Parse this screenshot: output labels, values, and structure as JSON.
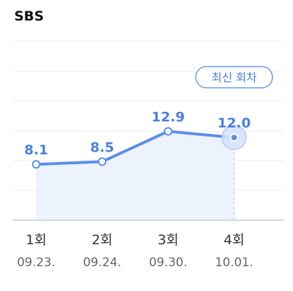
{
  "header": {
    "title": "SBS"
  },
  "chart_data": {
    "type": "line",
    "categories": [
      "1회",
      "2회",
      "3회",
      "4회"
    ],
    "dates": [
      "09.23.",
      "09.24.",
      "09.30.",
      "10.01."
    ],
    "series": [
      {
        "values": [
          8.1,
          8.5,
          12.9,
          12.0
        ]
      }
    ],
    "ylim": [
      0,
      26
    ],
    "grid": true,
    "area_fill": true,
    "highlight": {
      "index": 3,
      "label": "최신 회차"
    },
    "colors": {
      "line": "#5b8ee8",
      "value_label": "#4a80df",
      "area": "#edf3fd",
      "grid": "#eeeeee",
      "axis": "#cccccc",
      "tick_category": "#333333",
      "tick_date": "#666666",
      "badge_border": "#6a98ea",
      "badge_text": "#4a80df",
      "highlight_halo": "#d5e3fb"
    }
  }
}
